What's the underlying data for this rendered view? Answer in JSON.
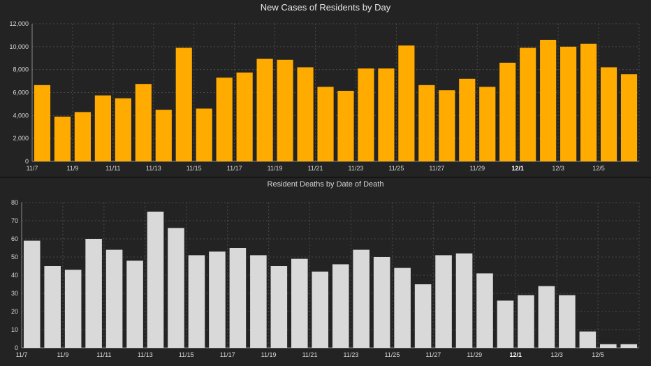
{
  "chart_data": [
    {
      "type": "bar",
      "title": "New Cases of Residents by Day",
      "xlabel": "",
      "ylabel": "",
      "ylim": [
        0,
        12000
      ],
      "yticks": [
        "0",
        "2,000",
        "4,000",
        "6,000",
        "8,000",
        "10,000",
        "12,000"
      ],
      "ytick_values": [
        0,
        2000,
        4000,
        6000,
        8000,
        10000,
        12000
      ],
      "categories": [
        "11/7",
        "11/8",
        "11/9",
        "11/10",
        "11/11",
        "11/12",
        "11/13",
        "11/14",
        "11/15",
        "11/16",
        "11/17",
        "11/18",
        "11/19",
        "11/20",
        "11/21",
        "11/22",
        "11/23",
        "11/24",
        "11/25",
        "11/26",
        "11/27",
        "11/28",
        "11/29",
        "11/30",
        "12/1",
        "12/2",
        "12/3",
        "12/4",
        "12/5",
        "12/6"
      ],
      "xtick_labels": [
        "11/7",
        "11/9",
        "11/11",
        "11/13",
        "11/15",
        "11/17",
        "11/19",
        "11/21",
        "11/23",
        "11/25",
        "11/27",
        "11/29",
        "12/1",
        "12/3",
        "12/5"
      ],
      "bold_tick": "12/1",
      "values": [
        6650,
        3900,
        4300,
        5750,
        5500,
        6750,
        4500,
        9900,
        4600,
        7300,
        7750,
        8950,
        8850,
        8200,
        6500,
        6150,
        8100,
        8100,
        10100,
        6650,
        6200,
        7200,
        6500,
        8600,
        9900,
        10600,
        10000,
        10250,
        8200,
        7600
      ],
      "color": "#ffab00",
      "grid": true
    },
    {
      "type": "bar",
      "title": "Resident Deaths by Date of Death",
      "xlabel": "",
      "ylabel": "",
      "ylim": [
        0,
        80
      ],
      "yticks": [
        "0",
        "10",
        "20",
        "30",
        "40",
        "50",
        "60",
        "70",
        "80"
      ],
      "ytick_values": [
        0,
        10,
        20,
        30,
        40,
        50,
        60,
        70,
        80
      ],
      "categories": [
        "11/7",
        "11/8",
        "11/9",
        "11/10",
        "11/11",
        "11/12",
        "11/13",
        "11/14",
        "11/15",
        "11/16",
        "11/17",
        "11/18",
        "11/19",
        "11/20",
        "11/21",
        "11/22",
        "11/23",
        "11/24",
        "11/25",
        "11/26",
        "11/27",
        "11/28",
        "11/29",
        "11/30",
        "12/1",
        "12/2",
        "12/3",
        "12/4",
        "12/5",
        "12/6"
      ],
      "xtick_labels": [
        "11/7",
        "11/9",
        "11/11",
        "11/13",
        "11/15",
        "11/17",
        "11/19",
        "11/21",
        "11/23",
        "11/25",
        "11/27",
        "11/29",
        "12/1",
        "12/3",
        "12/5"
      ],
      "bold_tick": "12/1",
      "values": [
        59,
        45,
        43,
        60,
        54,
        48,
        75,
        66,
        51,
        53,
        55,
        51,
        45,
        49,
        42,
        46,
        54,
        50,
        44,
        35,
        51,
        52,
        41,
        26,
        29,
        34,
        29,
        9,
        2,
        2
      ],
      "color": "#d9d9d9",
      "grid": true
    }
  ]
}
